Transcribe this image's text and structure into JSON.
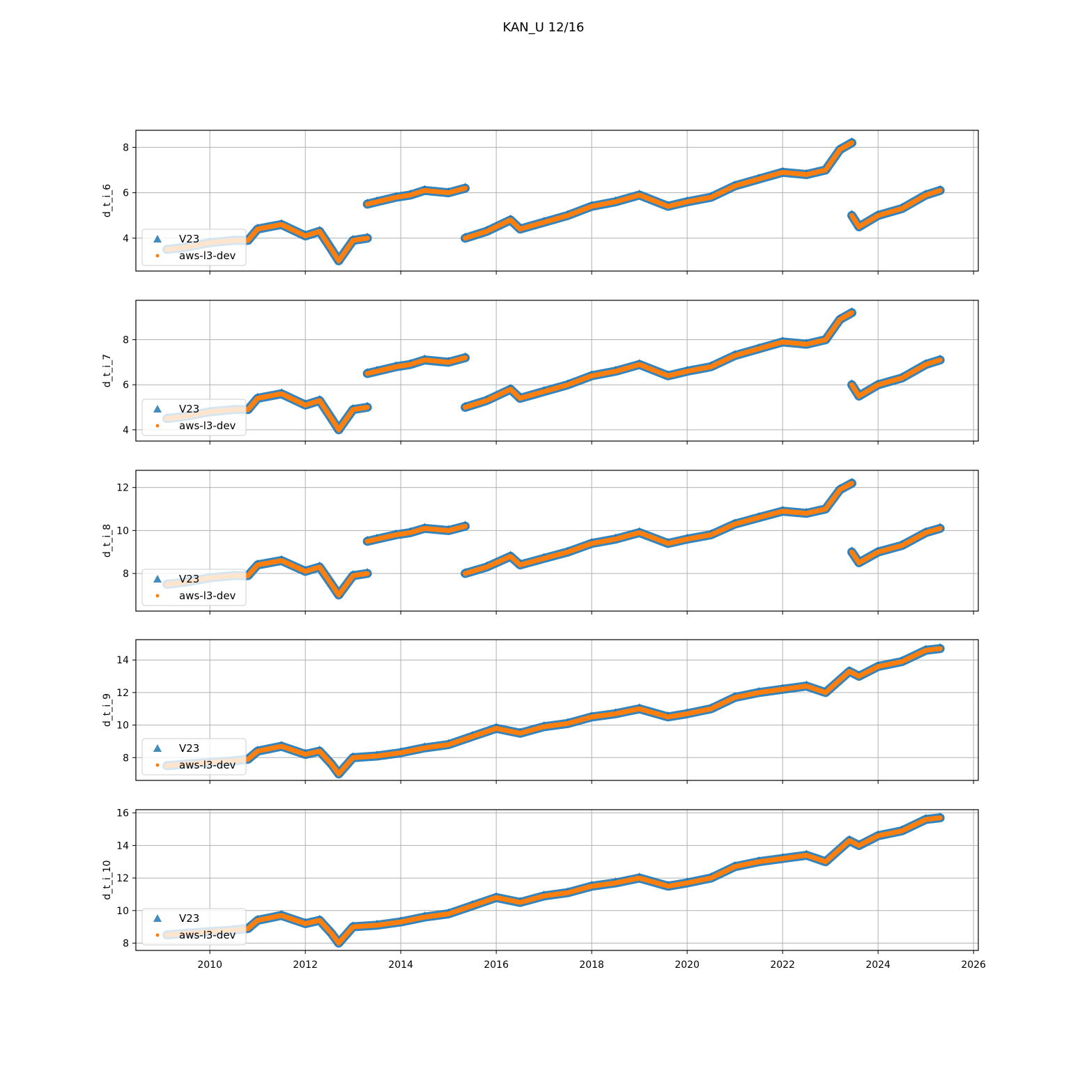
{
  "figure": {
    "title": "KAN_U 12/16"
  },
  "legend": {
    "placement": "lower-left",
    "entries": [
      {
        "name": "V23",
        "marker": "triangle-icon",
        "color": "#1f77b4"
      },
      {
        "name": "aws-l3-dev",
        "marker": "dot-icon",
        "color": "#ff7f0e"
      }
    ]
  },
  "chart_data": [
    {
      "type": "scatter",
      "ylabel": "d_t_i_6",
      "xlim": [
        2008.45,
        2026.1
      ],
      "ylim": [
        2.55,
        8.75
      ],
      "yticks": [
        "4",
        "6",
        "8"
      ],
      "grid": true,
      "x": [
        2009.1,
        2009.5,
        2010.0,
        2010.5,
        2010.8,
        2011.0,
        2011.5,
        2012.0,
        2012.3,
        2012.55,
        2012.7,
        2013.0,
        2013.3,
        "gap",
        2013.3,
        2013.5,
        2013.9,
        2014.2,
        2014.5,
        2015.0,
        2015.35,
        "gap",
        2015.35,
        2015.8,
        2016.3,
        2016.5,
        2017.0,
        2017.5,
        2018.0,
        2018.5,
        2019.0,
        2019.6,
        2020.0,
        2020.5,
        2021.0,
        2021.5,
        2022.0,
        2022.5,
        2022.9,
        2023.2,
        2023.45,
        "gap",
        2023.45,
        2023.6,
        2024.0,
        2024.5,
        2025.0,
        2025.3
      ],
      "series": [
        {
          "name": "V23",
          "values": [
            3.5,
            3.6,
            3.8,
            3.9,
            3.9,
            4.4,
            4.6,
            4.1,
            4.3,
            3.5,
            3.0,
            3.9,
            4.0,
            null,
            5.5,
            5.6,
            5.8,
            5.9,
            6.1,
            6.0,
            6.2,
            null,
            4.0,
            4.3,
            4.8,
            4.4,
            4.7,
            5.0,
            5.4,
            5.6,
            5.9,
            5.4,
            5.6,
            5.8,
            6.3,
            6.6,
            6.9,
            6.8,
            7.0,
            7.9,
            8.2,
            null,
            5.0,
            4.5,
            5.0,
            5.3,
            5.9,
            6.1
          ]
        },
        {
          "name": "aws-l3-dev",
          "values": [
            3.5,
            3.6,
            3.8,
            3.9,
            3.9,
            4.4,
            4.6,
            4.1,
            4.3,
            3.5,
            3.0,
            3.9,
            4.0,
            null,
            5.5,
            5.6,
            5.8,
            5.9,
            6.1,
            6.0,
            6.2,
            null,
            4.0,
            4.3,
            4.8,
            4.4,
            4.7,
            5.0,
            5.4,
            5.6,
            5.9,
            5.4,
            5.6,
            5.8,
            6.3,
            6.6,
            6.9,
            6.8,
            7.0,
            7.9,
            8.2,
            null,
            5.0,
            4.5,
            5.0,
            5.3,
            5.9,
            6.1
          ]
        }
      ]
    },
    {
      "type": "scatter",
      "ylabel": "d_t_i_7",
      "xlim": [
        2008.45,
        2026.1
      ],
      "ylim": [
        3.5,
        9.75
      ],
      "yticks": [
        "4",
        "6",
        "8"
      ],
      "grid": true,
      "x": [
        2009.1,
        2009.5,
        2010.0,
        2010.5,
        2010.8,
        2011.0,
        2011.5,
        2012.0,
        2012.3,
        2012.55,
        2012.7,
        2013.0,
        2013.3,
        "gap",
        2013.3,
        2013.5,
        2013.9,
        2014.2,
        2014.5,
        2015.0,
        2015.35,
        "gap",
        2015.35,
        2015.8,
        2016.3,
        2016.5,
        2017.0,
        2017.5,
        2018.0,
        2018.5,
        2019.0,
        2019.6,
        2020.0,
        2020.5,
        2021.0,
        2021.5,
        2022.0,
        2022.5,
        2022.9,
        2023.2,
        2023.45,
        "gap",
        2023.45,
        2023.6,
        2024.0,
        2024.5,
        2025.0,
        2025.3
      ],
      "series": [
        {
          "name": "V23",
          "values": [
            4.5,
            4.6,
            4.8,
            4.9,
            4.9,
            5.4,
            5.6,
            5.1,
            5.3,
            4.5,
            4.0,
            4.9,
            5.0,
            null,
            6.5,
            6.6,
            6.8,
            6.9,
            7.1,
            7.0,
            7.2,
            null,
            5.0,
            5.3,
            5.8,
            5.4,
            5.7,
            6.0,
            6.4,
            6.6,
            6.9,
            6.4,
            6.6,
            6.8,
            7.3,
            7.6,
            7.9,
            7.8,
            8.0,
            8.9,
            9.2,
            null,
            6.0,
            5.5,
            6.0,
            6.3,
            6.9,
            7.1
          ]
        },
        {
          "name": "aws-l3-dev",
          "values": [
            4.5,
            4.6,
            4.8,
            4.9,
            4.9,
            5.4,
            5.6,
            5.1,
            5.3,
            4.5,
            4.0,
            4.9,
            5.0,
            null,
            6.5,
            6.6,
            6.8,
            6.9,
            7.1,
            7.0,
            7.2,
            null,
            5.0,
            5.3,
            5.8,
            5.4,
            5.7,
            6.0,
            6.4,
            6.6,
            6.9,
            6.4,
            6.6,
            6.8,
            7.3,
            7.6,
            7.9,
            7.8,
            8.0,
            8.9,
            9.2,
            null,
            6.0,
            5.5,
            6.0,
            6.3,
            6.9,
            7.1
          ]
        }
      ]
    },
    {
      "type": "scatter",
      "ylabel": "d_t_i_8",
      "xlim": [
        2008.45,
        2026.1
      ],
      "ylim": [
        6.25,
        12.8
      ],
      "yticks": [
        "8",
        "10",
        "12"
      ],
      "grid": true,
      "x": [
        2009.1,
        2009.5,
        2010.0,
        2010.5,
        2010.8,
        2011.0,
        2011.5,
        2012.0,
        2012.3,
        2012.55,
        2012.7,
        2013.0,
        2013.3,
        "gap",
        2013.3,
        2013.5,
        2013.9,
        2014.2,
        2014.5,
        2015.0,
        2015.35,
        "gap",
        2015.35,
        2015.8,
        2016.3,
        2016.5,
        2017.0,
        2017.5,
        2018.0,
        2018.5,
        2019.0,
        2019.6,
        2020.0,
        2020.5,
        2021.0,
        2021.5,
        2022.0,
        2022.5,
        2022.9,
        2023.2,
        2023.45,
        "gap",
        2023.45,
        2023.6,
        2024.0,
        2024.5,
        2025.0,
        2025.3
      ],
      "series": [
        {
          "name": "V23",
          "values": [
            7.5,
            7.6,
            7.8,
            7.9,
            7.9,
            8.4,
            8.6,
            8.1,
            8.3,
            7.5,
            7.0,
            7.9,
            8.0,
            null,
            9.5,
            9.6,
            9.8,
            9.9,
            10.1,
            10.0,
            10.2,
            null,
            8.0,
            8.3,
            8.8,
            8.4,
            8.7,
            9.0,
            9.4,
            9.6,
            9.9,
            9.4,
            9.6,
            9.8,
            10.3,
            10.6,
            10.9,
            10.8,
            11.0,
            11.9,
            12.2,
            null,
            9.0,
            8.5,
            9.0,
            9.3,
            9.9,
            10.1
          ]
        },
        {
          "name": "aws-l3-dev",
          "values": [
            7.5,
            7.6,
            7.8,
            7.9,
            7.9,
            8.4,
            8.6,
            8.1,
            8.3,
            7.5,
            7.0,
            7.9,
            8.0,
            null,
            9.5,
            9.6,
            9.8,
            9.9,
            10.1,
            10.0,
            10.2,
            null,
            8.0,
            8.3,
            8.8,
            8.4,
            8.7,
            9.0,
            9.4,
            9.6,
            9.9,
            9.4,
            9.6,
            9.8,
            10.3,
            10.6,
            10.9,
            10.8,
            11.0,
            11.9,
            12.2,
            null,
            9.0,
            8.5,
            9.0,
            9.3,
            9.9,
            10.1
          ]
        }
      ]
    },
    {
      "type": "scatter",
      "ylabel": "d_t_i_9",
      "xlim": [
        2008.45,
        2026.1
      ],
      "ylim": [
        6.6,
        15.25
      ],
      "yticks": [
        "8",
        "10",
        "12",
        "14"
      ],
      "grid": true,
      "x": [
        2009.1,
        2009.5,
        2010.0,
        2010.5,
        2010.8,
        2011.0,
        2011.5,
        2012.0,
        2012.3,
        2012.55,
        2012.7,
        2013.0,
        2013.5,
        2014.0,
        2014.5,
        2015.0,
        2015.5,
        2016.0,
        2016.5,
        2017.0,
        2017.5,
        2018.0,
        2018.5,
        2019.0,
        2019.6,
        2020.0,
        2020.5,
        2021.0,
        2021.5,
        2022.0,
        2022.5,
        2022.9,
        2023.4,
        2023.6,
        2024.0,
        2024.5,
        2025.0,
        2025.3
      ],
      "series": [
        {
          "name": "V23",
          "values": [
            7.5,
            7.6,
            7.7,
            7.8,
            7.9,
            8.4,
            8.7,
            8.2,
            8.4,
            7.6,
            7.0,
            8.0,
            8.1,
            8.3,
            8.6,
            8.8,
            9.3,
            9.8,
            9.5,
            9.9,
            10.1,
            10.5,
            10.7,
            11.0,
            10.5,
            10.7,
            11.0,
            11.7,
            12.0,
            12.2,
            12.4,
            12.0,
            13.3,
            13.0,
            13.6,
            13.9,
            14.6,
            14.7
          ]
        },
        {
          "name": "aws-l3-dev",
          "values": [
            7.5,
            7.6,
            7.7,
            7.8,
            7.9,
            8.4,
            8.7,
            8.2,
            8.4,
            7.6,
            7.0,
            8.0,
            8.1,
            8.3,
            8.6,
            8.8,
            9.3,
            9.8,
            9.5,
            9.9,
            10.1,
            10.5,
            10.7,
            11.0,
            10.5,
            10.7,
            11.0,
            11.7,
            12.0,
            12.2,
            12.4,
            12.0,
            13.3,
            13.0,
            13.6,
            13.9,
            14.6,
            14.7
          ]
        }
      ]
    },
    {
      "type": "scatter",
      "ylabel": "d_t_i_10",
      "xlim": [
        2008.45,
        2026.1
      ],
      "ylim": [
        7.55,
        16.2
      ],
      "yticks": [
        "8",
        "10",
        "12",
        "14",
        "16"
      ],
      "grid": true,
      "x": [
        2009.1,
        2009.5,
        2010.0,
        2010.5,
        2010.8,
        2011.0,
        2011.5,
        2012.0,
        2012.3,
        2012.55,
        2012.7,
        2013.0,
        2013.5,
        2014.0,
        2014.5,
        2015.0,
        2015.5,
        2016.0,
        2016.5,
        2017.0,
        2017.5,
        2018.0,
        2018.5,
        2019.0,
        2019.6,
        2020.0,
        2020.5,
        2021.0,
        2021.5,
        2022.0,
        2022.5,
        2022.9,
        2023.4,
        2023.6,
        2024.0,
        2024.5,
        2025.0,
        2025.3
      ],
      "series": [
        {
          "name": "V23",
          "values": [
            8.5,
            8.6,
            8.7,
            8.8,
            8.9,
            9.4,
            9.7,
            9.2,
            9.4,
            8.6,
            8.0,
            9.0,
            9.1,
            9.3,
            9.6,
            9.8,
            10.3,
            10.8,
            10.5,
            10.9,
            11.1,
            11.5,
            11.7,
            12.0,
            11.5,
            11.7,
            12.0,
            12.7,
            13.0,
            13.2,
            13.4,
            13.0,
            14.3,
            14.0,
            14.6,
            14.9,
            15.6,
            15.7
          ]
        },
        {
          "name": "aws-l3-dev",
          "values": [
            8.5,
            8.6,
            8.7,
            8.8,
            8.9,
            9.4,
            9.7,
            9.2,
            9.4,
            8.6,
            8.0,
            9.0,
            9.1,
            9.3,
            9.6,
            9.8,
            10.3,
            10.8,
            10.5,
            10.9,
            11.1,
            11.5,
            11.7,
            12.0,
            11.5,
            11.7,
            12.0,
            12.7,
            13.0,
            13.2,
            13.4,
            13.0,
            14.3,
            14.0,
            14.6,
            14.9,
            15.6,
            15.7
          ]
        }
      ]
    }
  ],
  "xticks": [
    "2010",
    "2012",
    "2014",
    "2016",
    "2018",
    "2020",
    "2022",
    "2024",
    "2026"
  ],
  "colors": {
    "v23": "#1f77b4",
    "aws": "#ff7f0e",
    "grid": "#b0b0b0"
  }
}
